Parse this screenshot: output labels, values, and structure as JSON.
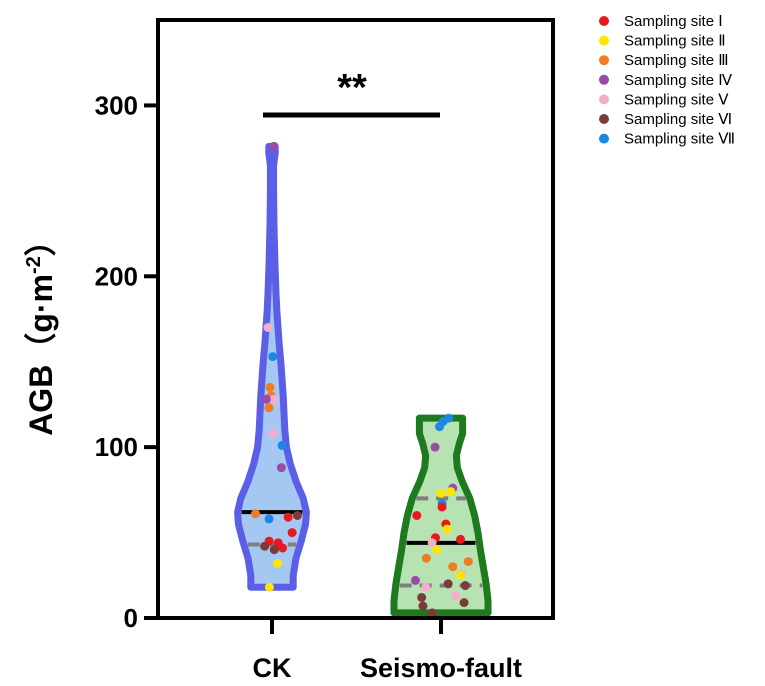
{
  "chart_data": {
    "type": "violin",
    "ylabel": "AGB（g·m",
    "ylabel_sup": "-2",
    "ylabel_close": "）",
    "ylim": [
      0,
      350
    ],
    "yticks": [
      0,
      100,
      200,
      300
    ],
    "ytick_labels": [
      "0",
      "100",
      "200",
      "300"
    ],
    "categories": [
      "CK",
      "Seismo-fault"
    ],
    "significance": "**",
    "legend_position": "right",
    "legend": [
      {
        "label": "Sampling site Ⅰ",
        "color": "#e8191c"
      },
      {
        "label": "Sampling site Ⅱ",
        "color": "#ffe600"
      },
      {
        "label": "Sampling site Ⅲ",
        "color": "#f07d24"
      },
      {
        "label": "Sampling site Ⅳ",
        "color": "#9a4ba5"
      },
      {
        "label": "Sampling site Ⅴ",
        "color": "#f4aecb"
      },
      {
        "label": "Sampling site Ⅵ",
        "color": "#7b3b3b"
      },
      {
        "label": "Sampling site Ⅶ",
        "color": "#1d87e6"
      }
    ],
    "groups": [
      {
        "name": "CK",
        "fill": "#a4c8f2",
        "stroke": "#5b5fe8",
        "median": 62,
        "q1": 43,
        "q3": 128,
        "min": 18,
        "max": 276,
        "density": [
          [
            18,
            0.53
          ],
          [
            25,
            0.53
          ],
          [
            35,
            0.6
          ],
          [
            45,
            0.73
          ],
          [
            55,
            0.84
          ],
          [
            62,
            0.86
          ],
          [
            70,
            0.78
          ],
          [
            80,
            0.6
          ],
          [
            90,
            0.46
          ],
          [
            100,
            0.36
          ],
          [
            110,
            0.32
          ],
          [
            120,
            0.3
          ],
          [
            130,
            0.28
          ],
          [
            140,
            0.25
          ],
          [
            150,
            0.22
          ],
          [
            160,
            0.18
          ],
          [
            170,
            0.15
          ],
          [
            180,
            0.12
          ],
          [
            190,
            0.1
          ],
          [
            210,
            0.07
          ],
          [
            230,
            0.05
          ],
          [
            250,
            0.04
          ],
          [
            265,
            0.04
          ],
          [
            272,
            0.08
          ],
          [
            276,
            0.08
          ]
        ],
        "points": [
          {
            "y": 276,
            "site": 3
          },
          {
            "y": 170,
            "site": 4
          },
          {
            "y": 153,
            "site": 6
          },
          {
            "y": 135,
            "site": 2
          },
          {
            "y": 130,
            "site": 2
          },
          {
            "y": 128,
            "site": 4
          },
          {
            "y": 128,
            "site": 3
          },
          {
            "y": 123,
            "site": 2
          },
          {
            "y": 108,
            "site": 4
          },
          {
            "y": 101,
            "site": 6
          },
          {
            "y": 88,
            "site": 3
          },
          {
            "y": 61,
            "site": 2
          },
          {
            "y": 60,
            "site": 5
          },
          {
            "y": 59,
            "site": 0
          },
          {
            "y": 58,
            "site": 6
          },
          {
            "y": 50,
            "site": 0
          },
          {
            "y": 45,
            "site": 0
          },
          {
            "y": 44,
            "site": 0
          },
          {
            "y": 42,
            "site": 5
          },
          {
            "y": 41,
            "site": 0
          },
          {
            "y": 40,
            "site": 5
          },
          {
            "y": 32,
            "site": 1
          },
          {
            "y": 18,
            "site": 1
          }
        ]
      },
      {
        "name": "Seismo-fault",
        "fill": "#b7e2b1",
        "stroke": "#1e7a1e",
        "median": 44,
        "q1": 19,
        "q3": 70,
        "min": 3,
        "max": 117,
        "density": [
          [
            3,
            0.98
          ],
          [
            10,
            0.98
          ],
          [
            20,
            0.94
          ],
          [
            30,
            0.88
          ],
          [
            40,
            0.82
          ],
          [
            50,
            0.77
          ],
          [
            60,
            0.7
          ],
          [
            70,
            0.6
          ],
          [
            80,
            0.44
          ],
          [
            88,
            0.34
          ],
          [
            95,
            0.32
          ],
          [
            102,
            0.38
          ],
          [
            108,
            0.45
          ],
          [
            114,
            0.45
          ],
          [
            117,
            0.45
          ]
        ],
        "points": [
          {
            "y": 117,
            "site": 6
          },
          {
            "y": 115,
            "site": 6
          },
          {
            "y": 112,
            "site": 6
          },
          {
            "y": 100,
            "site": 3
          },
          {
            "y": 76,
            "site": 3
          },
          {
            "y": 74,
            "site": 1
          },
          {
            "y": 73,
            "site": 1
          },
          {
            "y": 67,
            "site": 6
          },
          {
            "y": 65,
            "site": 0
          },
          {
            "y": 60,
            "site": 0
          },
          {
            "y": 55,
            "site": 0
          },
          {
            "y": 52,
            "site": 1
          },
          {
            "y": 47,
            "site": 0
          },
          {
            "y": 46,
            "site": 0
          },
          {
            "y": 44,
            "site": 4
          },
          {
            "y": 40,
            "site": 1
          },
          {
            "y": 35,
            "site": 2
          },
          {
            "y": 33,
            "site": 2
          },
          {
            "y": 30,
            "site": 2
          },
          {
            "y": 26,
            "site": 4
          },
          {
            "y": 25,
            "site": 1
          },
          {
            "y": 22,
            "site": 3
          },
          {
            "y": 20,
            "site": 5
          },
          {
            "y": 19,
            "site": 5
          },
          {
            "y": 18,
            "site": 4
          },
          {
            "y": 13,
            "site": 4
          },
          {
            "y": 12,
            "site": 5
          },
          {
            "y": 9,
            "site": 5
          },
          {
            "y": 7,
            "site": 5
          },
          {
            "y": 3,
            "site": 5
          }
        ]
      }
    ]
  }
}
